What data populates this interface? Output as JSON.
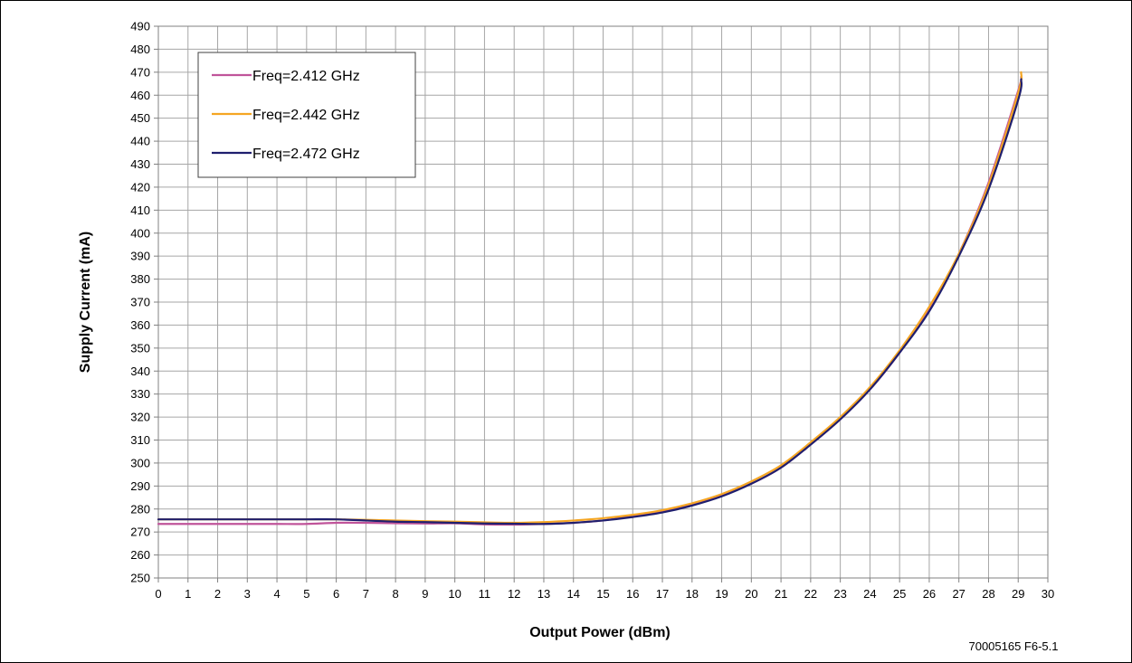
{
  "chart_data": {
    "type": "line",
    "xlabel": "Output Power (dBm)",
    "ylabel": "Supply Current (mA)",
    "xlim": [
      0,
      30
    ],
    "ylim": [
      250,
      490
    ],
    "x_ticks": [
      "0",
      "1",
      "2",
      "3",
      "4",
      "5",
      "6",
      "7",
      "8",
      "9",
      "10",
      "11",
      "12",
      "13",
      "14",
      "15",
      "16",
      "17",
      "18",
      "19",
      "20",
      "21",
      "22",
      "23",
      "24",
      "25",
      "26",
      "27",
      "28",
      "29",
      "30"
    ],
    "y_ticks": [
      "250",
      "260",
      "270",
      "280",
      "290",
      "300",
      "310",
      "320",
      "330",
      "340",
      "350",
      "360",
      "370",
      "380",
      "390",
      "400",
      "410",
      "420",
      "430",
      "440",
      "450",
      "460",
      "470",
      "480",
      "490"
    ],
    "grid": true,
    "legend_position": "top-left",
    "series": [
      {
        "name": "Freq=2.412 GHz",
        "color": "#c0549a",
        "x": [
          0,
          1,
          2,
          3,
          4,
          5,
          6,
          7,
          8,
          9,
          10,
          11,
          12,
          13,
          14,
          15,
          16,
          17,
          18,
          19,
          20,
          21,
          22,
          23,
          24,
          25,
          26,
          27,
          28,
          29,
          29.1
        ],
        "y": [
          273.5,
          273.5,
          273.5,
          273.5,
          273.5,
          273.5,
          274,
          274,
          273.8,
          273.7,
          273.8,
          273.3,
          273.2,
          273.5,
          274,
          275,
          277,
          279,
          282,
          286,
          291,
          298,
          308,
          319,
          332,
          348,
          367,
          391,
          422,
          462,
          468
        ]
      },
      {
        "name": "Freq=2.442 GHz",
        "color": "#f5a623",
        "x": [
          0,
          1,
          2,
          3,
          4,
          5,
          6,
          7,
          8,
          9,
          10,
          11,
          12,
          13,
          14,
          15,
          16,
          17,
          18,
          19,
          20,
          21,
          22,
          23,
          24,
          25,
          26,
          27,
          28,
          29,
          29.1
        ],
        "y": [
          275.5,
          275.5,
          275.5,
          275.5,
          275.5,
          275.5,
          275.5,
          275.3,
          275,
          274.7,
          274.5,
          274.2,
          274,
          274.3,
          275,
          276,
          277.5,
          279.5,
          282.5,
          286.5,
          292,
          299,
          309,
          320,
          333,
          349,
          368,
          391,
          421,
          461,
          470
        ]
      },
      {
        "name": "Freq=2.472 GHz",
        "color": "#1f1f6e",
        "x": [
          0,
          1,
          2,
          3,
          4,
          5,
          6,
          7,
          8,
          9,
          10,
          11,
          12,
          13,
          14,
          15,
          16,
          17,
          18,
          19,
          20,
          21,
          22,
          23,
          24,
          25,
          26,
          27,
          28,
          29,
          29.1
        ],
        "y": [
          275.5,
          275.5,
          275.5,
          275.5,
          275.5,
          275.5,
          275.5,
          275,
          274.5,
          274.3,
          274,
          273.7,
          273.6,
          273.5,
          274,
          275,
          276.5,
          278.5,
          281.5,
          285.5,
          291,
          298,
          308,
          319,
          332,
          348,
          366,
          390,
          419,
          458,
          467
        ]
      }
    ],
    "annotation": "70005165 F6-5.1"
  }
}
